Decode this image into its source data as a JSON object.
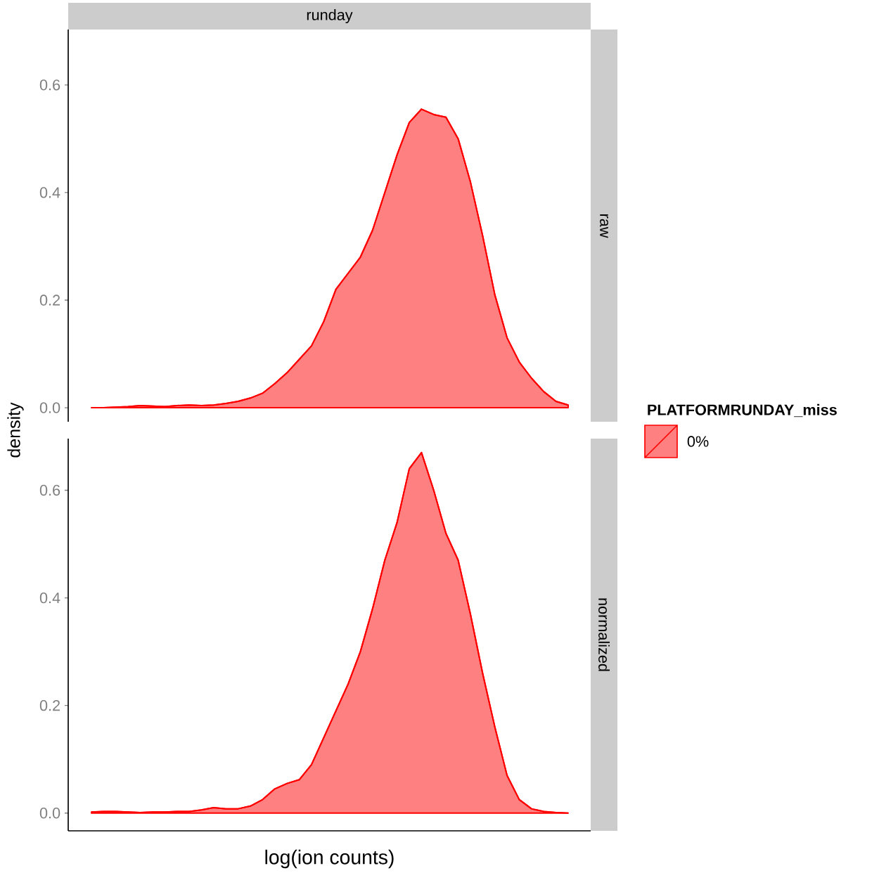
{
  "chart_data": [
    {
      "type": "area",
      "title": "runday",
      "annotations": [
        "raw"
      ],
      "legend_title": "PLATFORMRUNDAY_miss",
      "legend": "right",
      "tick_labels": "y",
      "categories": [
        null,
        null,
        null,
        null,
        null,
        null,
        null,
        null,
        null,
        null,
        null,
        null,
        null,
        null,
        null,
        null,
        null,
        null,
        null,
        null,
        null,
        null,
        null,
        null,
        null,
        null,
        null,
        null,
        null,
        null,
        null,
        null,
        null,
        null,
        null,
        null,
        null,
        null,
        null,
        null
      ],
      "ylim": [
        -0.026,
        0.703
      ],
      "yticks": [
        {
          "value": 0,
          "label": "0.0"
        },
        0.2,
        0.4,
        0.6
      ],
      "series": [
        {
          "name": "0%",
          "color": "#ff0000",
          "values": [
            0,
            0,
            0.001,
            0.002,
            0.004,
            0.003,
            0.002,
            0.004,
            0.005,
            0.004,
            0.005,
            0.008,
            0.012,
            0.018,
            0.027,
            0.045,
            0.065,
            0.09,
            0.115,
            0.16,
            0.22,
            0.25,
            0.28,
            0.33,
            0.4,
            0.47,
            0.53,
            0.555,
            0.545,
            0.54,
            0.5,
            0.42,
            0.32,
            0.21,
            0.13,
            0.085,
            0.055,
            0.03,
            0.012,
            0.005
          ]
        }
      ]
    },
    {
      "type": "area",
      "annotations": [
        "normalized"
      ],
      "xlabel": "log(ion counts)",
      "ylabel": "density",
      "tick_labels": "y",
      "categories": [
        null,
        null,
        null,
        null,
        null,
        null,
        null,
        null,
        null,
        null,
        null,
        null,
        null,
        null,
        null,
        null,
        null,
        null,
        null,
        null,
        null,
        null,
        null,
        null,
        null,
        null,
        null,
        null,
        null,
        null,
        null,
        null,
        null,
        null,
        null,
        null,
        null,
        null,
        null,
        null
      ],
      "ylim": [
        -0.033,
        0.696
      ],
      "yticks": [
        {
          "value": 0,
          "label": "0.0"
        },
        0.2,
        0.4,
        0.6
      ],
      "series": [
        {
          "color": "#ff0000",
          "values": [
            0.002,
            0.003,
            0.003,
            0.002,
            0.001,
            0.002,
            0.002,
            0.003,
            0.003,
            0.006,
            0.01,
            0.008,
            0.008,
            0.013,
            0.025,
            0.045,
            0.055,
            0.062,
            0.09,
            0.14,
            0.19,
            0.24,
            0.3,
            0.38,
            0.47,
            0.54,
            0.64,
            0.67,
            0.6,
            0.52,
            0.47,
            0.37,
            0.26,
            0.16,
            0.07,
            0.025,
            0.008,
            0.003,
            0.001,
            0
          ]
        }
      ]
    }
  ]
}
